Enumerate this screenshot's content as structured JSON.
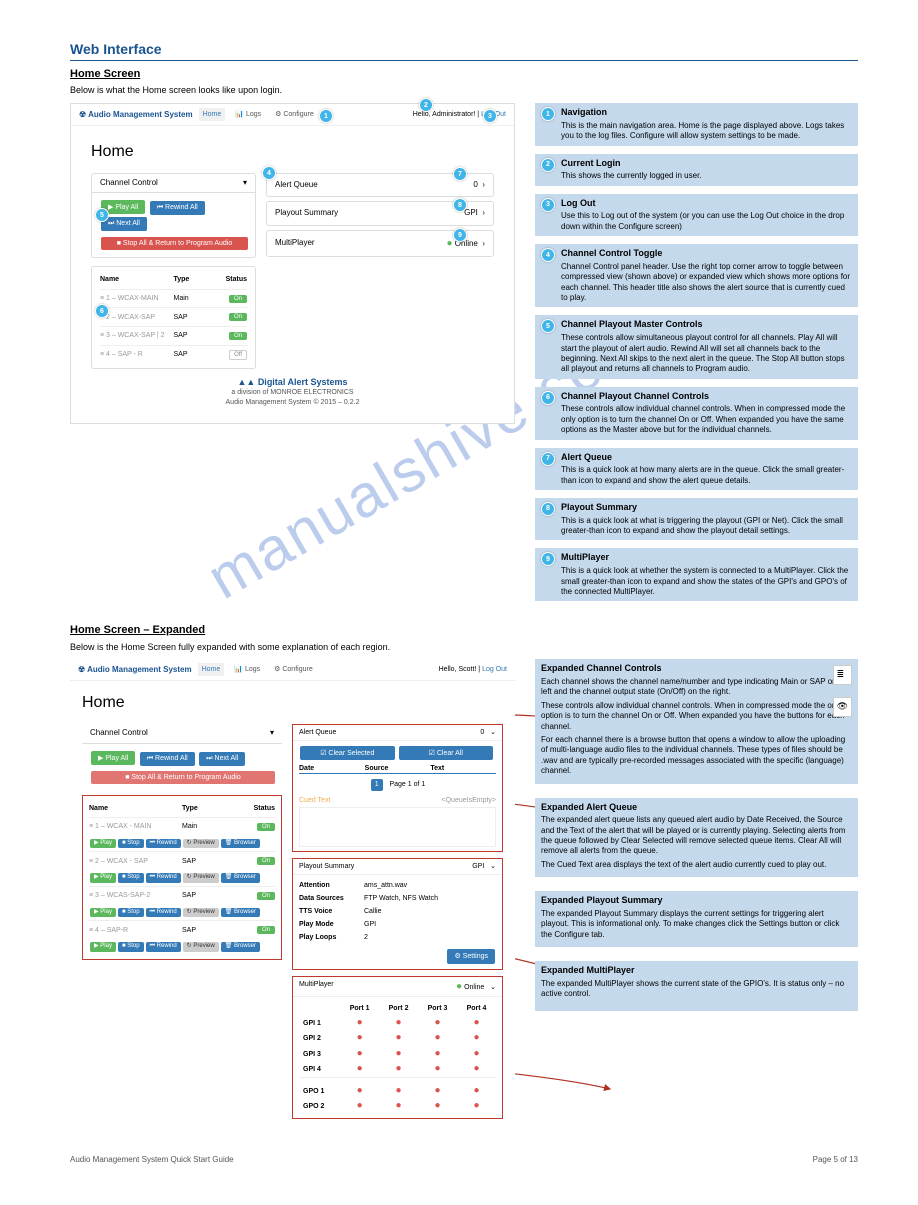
{
  "page_header": {
    "section": "Web Interface",
    "subsection": "Home Screen"
  },
  "intro": "Below is what the Home screen looks like upon login.",
  "screenshot1": {
    "brand": "Audio Management System",
    "nav": {
      "home": "Home",
      "logs": "Logs",
      "configure": "Configure"
    },
    "greeting": "Hello, Administrator!",
    "logout": "Log Out",
    "home_title": "Home",
    "channel_control": "Channel Control",
    "buttons": {
      "play_all": "▶ Play All",
      "rewind_all": "⏮ Rewind All",
      "next_all": "⏭ Next All",
      "stop_all": "■ Stop All & Return to Program Audio"
    },
    "table_headers": {
      "name": "Name",
      "type": "Type",
      "status": "Status"
    },
    "channels": [
      {
        "name": "1 – WCAX-MAIN",
        "type": "Main",
        "status": "On"
      },
      {
        "name": "2 – WCAX-SAP",
        "type": "SAP",
        "status": "On"
      },
      {
        "name": "3 – WCAX-SAP | 2",
        "type": "SAP",
        "status": "On"
      },
      {
        "name": "4 – SAP - R",
        "type": "SAP",
        "status": "Off"
      }
    ],
    "side": {
      "alert_queue": "Alert Queue",
      "alert_count": "0",
      "playout_summary": "Playout Summary",
      "playout_mode": "GPI",
      "multiplayer": "MultiPlayer",
      "multiplayer_status": "Online"
    },
    "footer": {
      "brand": "Digital Alert Systems",
      "sub": "a division of MONROE ELECTRONICS",
      "copy": "Audio Management System © 2015 – 0.2.2"
    }
  },
  "callouts": [
    {
      "n": "1",
      "style": "left:248px; top:5px;"
    },
    {
      "n": "2",
      "style": "left:348px; top:-6px;"
    },
    {
      "n": "3",
      "style": "left:412px; top:5px;"
    },
    {
      "n": "4",
      "style": "left:191px; top:62px;"
    },
    {
      "n": "5",
      "style": "left:24px; top:104px;"
    },
    {
      "n": "6",
      "style": "left:24px; top:200px;"
    },
    {
      "n": "7",
      "style": "left:382px; top:63px;"
    },
    {
      "n": "8",
      "style": "left:382px; top:94px;"
    },
    {
      "n": "9",
      "style": "left:382px; top:124px;"
    }
  ],
  "notes": [
    {
      "n": "1",
      "title": "Navigation",
      "text": "This is the main navigation area. Home is the page displayed above. Logs takes you to the log files. Configure will allow system settings to be made."
    },
    {
      "n": "2",
      "title": "Current Login",
      "text": "This shows the currently logged in user."
    },
    {
      "n": "3",
      "title": "Log Out",
      "text": "Use this to Log out of the system (or you can use the Log Out choice in the drop down within the Configure screen)"
    },
    {
      "n": "4",
      "title": "Channel Control Toggle",
      "text": "Channel Control panel header. Use the right top corner arrow to toggle between compressed view (shown above) or expanded view which shows more options for each channel. This header title also shows the alert source that is currently cued to play."
    },
    {
      "n": "5",
      "title": "Channel Playout Master Controls",
      "text": "These controls allow simultaneous playout control for all channels. Play All will start the playout of alert audio. Rewind All will set all channels back to the beginning. Next All skips to the next alert in the queue. The Stop All button stops all playout and returns all channels to Program audio."
    },
    {
      "n": "6",
      "title": "Channel Playout Channel Controls",
      "text": "These controls allow individual channel controls. When in compressed mode the only option is to turn the channel On or Off. When expanded you have the same options as the Master above but for the individual channels."
    },
    {
      "n": "7",
      "title": "Alert Queue",
      "text": "This is a quick look at how many alerts are in the queue. Click the small greater-than icon to expand and show the alert queue details."
    },
    {
      "n": "8",
      "title": "Playout Summary",
      "text": "This is a quick look at what is triggering the playout (GPI or Net). Click the small greater-than icon to expand and show the playout detail settings."
    },
    {
      "n": "9",
      "title": "MultiPlayer",
      "text": "This is a quick look at whether the system is connected to a MultiPlayer. Click the small greater-than icon to expand and show the states of the GPI's and GPO's of the connected MultiPlayer."
    }
  ],
  "expanded_title": "Home Screen – Expanded",
  "expanded_intro": "Below is the Home Screen fully expanded with some explanation of each region.",
  "screenshot2": {
    "greeting": "Hello, Scott!",
    "channels": [
      {
        "name": "1 – WCAX - MAIN",
        "type": "Main",
        "status": "On"
      },
      {
        "name": "2 – WCAX - SAP",
        "type": "SAP",
        "status": "On"
      },
      {
        "name": "3 – WCAS-SAP-2",
        "type": "SAP",
        "status": "On"
      },
      {
        "name": "4 – SAP-R",
        "type": "SAP",
        "status": "On"
      }
    ],
    "chan_btns": [
      "▶ Play",
      "■ Stop",
      "⏮ Rewind",
      "↻ Preview",
      "🗑 Browser"
    ],
    "alert": {
      "title": "Alert Queue",
      "clear_sel": "☑ Clear Selected",
      "clear_all": "☑ Clear All",
      "date": "Date",
      "source": "Source",
      "text": "Text",
      "page": "Page 1 of 1",
      "cued": "Cued Text",
      "empty": "<QueueIsEmpty>"
    },
    "summary": {
      "title": "Playout Summary",
      "mode_lbl": "GPI",
      "rows": [
        {
          "k": "Attention",
          "v": "ams_attn.wav"
        },
        {
          "k": "Data Sources",
          "v": "FTP Watch, NFS Watch"
        },
        {
          "k": "TTS Voice",
          "v": "Callie"
        },
        {
          "k": "Play Mode",
          "v": "GPI"
        },
        {
          "k": "Play Loops",
          "v": "2"
        }
      ],
      "settings_btn": "⚙ Settings"
    },
    "multi": {
      "title": "MultiPlayer",
      "status": "Online",
      "ports": [
        "Port 1",
        "Port 2",
        "Port 3",
        "Port 4"
      ],
      "gpis": [
        "GPI 1",
        "GPI 2",
        "GPI 3",
        "GPI 4"
      ],
      "gpos": [
        "GPO 1",
        "GPO 2"
      ]
    }
  },
  "expanded_notes": [
    {
      "title": "Expanded Channel Controls",
      "rows": [
        "Each channel shows the channel name/number and type indicating Main or SAP on the left and the channel output state (On/Off) on the right.",
        "These controls allow individual channel controls. When in compressed mode the only option is to turn the channel On or Off. When expanded you have the buttons for each channel.",
        "For each channel there is a browse button that opens a window to allow the uploading of multi-language audio files to the individual channels. These types of files should be .wav and are typically pre-recorded messages associated with the specific (language) channel."
      ],
      "icons": [
        "≣",
        "👁"
      ]
    },
    {
      "title": "Expanded Alert Queue",
      "rows": [
        "The expanded alert queue lists any queued alert audio by Date Received, the Source and the Text of the alert that will be played or is currently playing. Selecting alerts from the queue followed by Clear Selected will remove selected queue items. Clear All will remove all alerts from the queue.",
        "The Cued Text area displays the text of the alert audio currently cued to play out."
      ]
    },
    {
      "title": "Expanded Playout Summary",
      "rows": [
        "The expanded Playout Summary displays the current settings for triggering alert playout. This is informational only. To make changes click the Settings button or click the Configure tab."
      ]
    },
    {
      "title": "Expanded MultiPlayer",
      "rows": [
        "The expanded MultiPlayer shows the current state of the GPIO's. It is status only – no active control."
      ]
    }
  ],
  "footer": {
    "left": "Audio Management System Quick Start Guide",
    "right": "Page 5 of 13"
  }
}
